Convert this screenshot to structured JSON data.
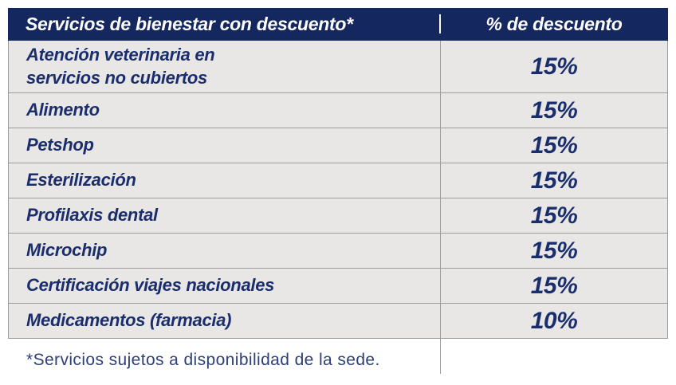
{
  "table": {
    "header": {
      "service_label": "Servicios de bienestar con descuento*",
      "discount_label": "% de descuento"
    },
    "rows": [
      {
        "service": "Atención veterinaria en\nservicios no cubiertos",
        "discount": "15%"
      },
      {
        "service": "Alimento",
        "discount": "15%"
      },
      {
        "service": "Petshop",
        "discount": "15%"
      },
      {
        "service": "Esterilización",
        "discount": "15%"
      },
      {
        "service": "Profilaxis dental",
        "discount": "15%"
      },
      {
        "service": "Microchip",
        "discount": "15%"
      },
      {
        "service": "Certificación viajes nacionales",
        "discount": "15%"
      },
      {
        "service": "Medicamentos (farmacia)",
        "discount": "10%"
      }
    ],
    "footnote": "*Servicios sujetos a disponibilidad de la sede."
  },
  "colors": {
    "header_bg": "#14275f",
    "text_navy": "#1a2e6d",
    "row_bg": "#e8e7e6",
    "hairline": "#9c9c9c",
    "footnote_color": "#2e4077"
  }
}
